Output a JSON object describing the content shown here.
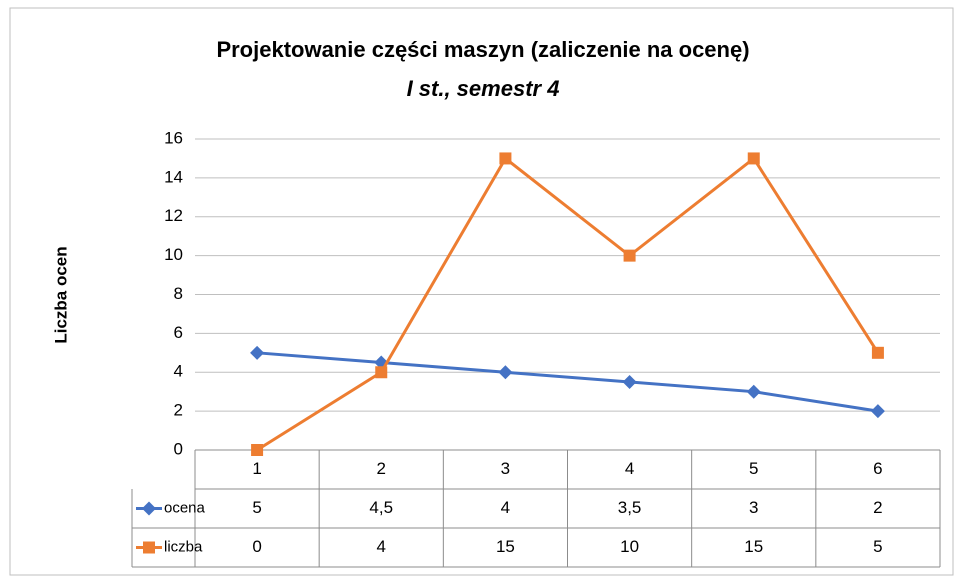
{
  "chart_data": {
    "type": "line",
    "title": "Projektowanie części maszyn (zaliczenie na ocenę)",
    "subtitle": "I st.,  semestr 4",
    "y_label": "Liczba ocen",
    "categories": [
      "1",
      "2",
      "3",
      "4",
      "5",
      "6"
    ],
    "series": [
      {
        "name": "ocena",
        "color": "#4472c4",
        "marker": "diamond",
        "values": [
          5,
          4.5,
          4,
          3.5,
          3,
          2
        ],
        "value_labels": [
          "5",
          "4,5",
          "4",
          "3,5",
          "3",
          "2"
        ]
      },
      {
        "name": "liczba",
        "color": "#ed7d31",
        "marker": "square",
        "values": [
          0,
          4,
          15,
          10,
          15,
          5
        ]
      }
    ],
    "ylim": [
      0,
      16
    ],
    "yticks": [
      0,
      2,
      4,
      6,
      8,
      10,
      12,
      14,
      16
    ],
    "grid": true,
    "data_table": true
  }
}
